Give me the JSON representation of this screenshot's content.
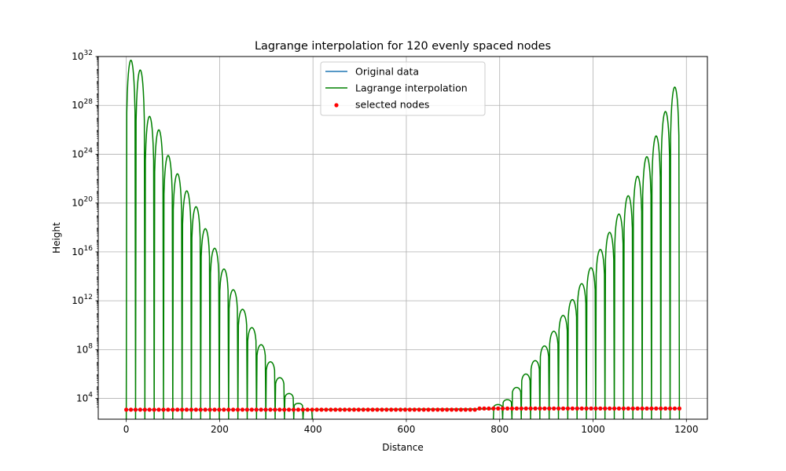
{
  "chart_data": {
    "type": "line",
    "title": "Lagrange interpolation for 120 evenly spaced nodes",
    "xlabel": "Distance",
    "ylabel": "Height",
    "xlim": [
      -60,
      1245
    ],
    "ylim": [
      200,
      1e+32
    ],
    "yscale": "log",
    "grid": true,
    "legend_position": "top-center",
    "x_ticks": [
      0,
      200,
      400,
      600,
      800,
      1000,
      1200
    ],
    "x_tick_labels": [
      "0",
      "200",
      "400",
      "600",
      "800",
      "1000",
      "1200"
    ],
    "y_tick_exponents": [
      4,
      8,
      12,
      16,
      20,
      24,
      28,
      32
    ],
    "y_tick_labels": [
      "10^4",
      "10^8",
      "10^12",
      "10^16",
      "10^20",
      "10^24",
      "10^28",
      "10^32"
    ],
    "node_spacing": 19.93,
    "node_count": 120,
    "series": [
      {
        "name": "Original data",
        "kind": "line",
        "color": "#1f77b4",
        "x": [
          0,
          300,
          600,
          750,
          760,
          900,
          1185
        ],
        "y": [
          1200,
          1220,
          1250,
          1250,
          1500,
          1550,
          1500
        ]
      },
      {
        "name": "Lagrange interpolation",
        "kind": "line",
        "color": "#008000",
        "lobe_peaks_left_log10": [
          31.7,
          30.9,
          27.1,
          26.0,
          23.9,
          22.4,
          21.0,
          19.7,
          17.9,
          16.3,
          14.6,
          12.9,
          11.3,
          9.8,
          8.4,
          7.0,
          5.7,
          4.4,
          3.6,
          3.1
        ],
        "lobe_peaks_right_log10": [
          3.5,
          3.9,
          4.9,
          6.0,
          7.1,
          8.3,
          9.5,
          10.8,
          12.1,
          13.4,
          14.7,
          16.2,
          17.6,
          19.1,
          20.6,
          22.2,
          23.8,
          25.5,
          27.5,
          29.5
        ],
        "middle_level": 1250
      },
      {
        "name": "selected nodes",
        "kind": "scatter",
        "color": "#ff0000",
        "x_start": 0,
        "x_end": 1185,
        "segments": [
          {
            "x_max": 750,
            "y": 1200
          },
          {
            "x_max": 1185,
            "y": 1500
          }
        ]
      }
    ]
  }
}
